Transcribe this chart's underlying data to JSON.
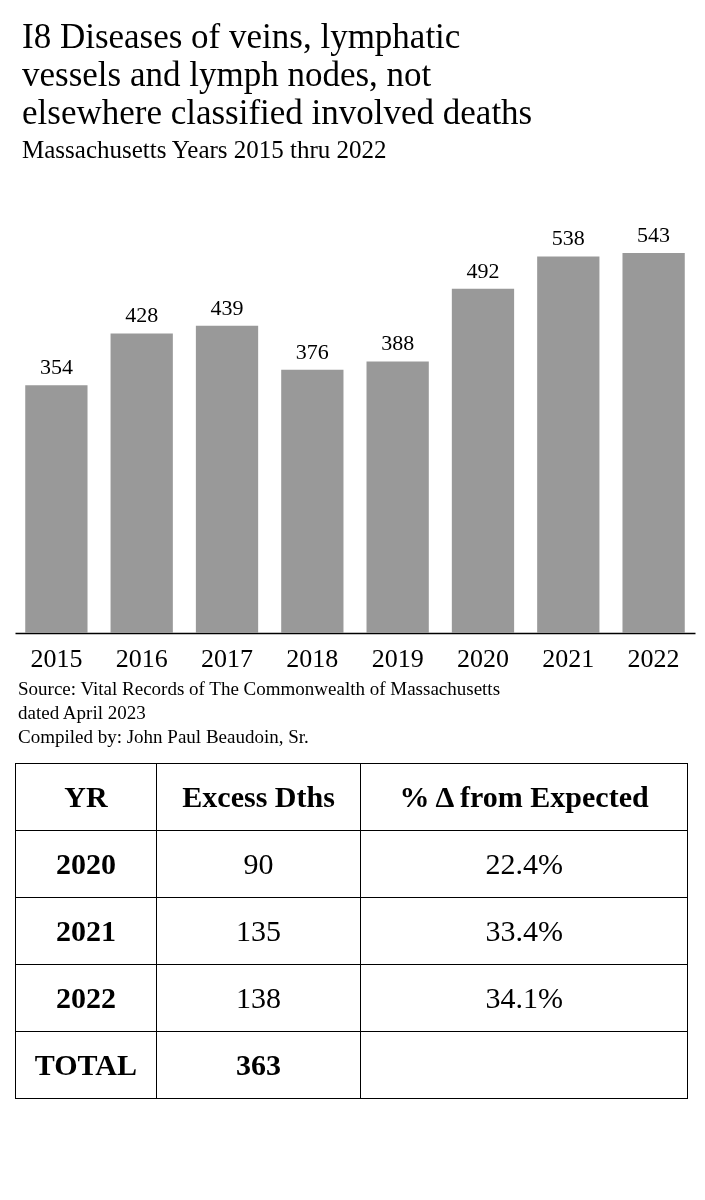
{
  "chart_data": [
    {
      "type": "bar",
      "title": "I8 Diseases of veins, lymphatic vessels and lymph nodes, not elsewhere classified involved deaths",
      "subtitle": "Massachusetts Years 2015 thru 2022",
      "categories": [
        "2015",
        "2016",
        "2017",
        "2018",
        "2019",
        "2020",
        "2021",
        "2022"
      ],
      "values": [
        354,
        428,
        439,
        376,
        388,
        492,
        538,
        543
      ],
      "color": "#999999",
      "data_labels": true,
      "grid": false,
      "annotations": [
        "Source:  Vital Records of The Commonwealth of Massachusetts dated April 2023",
        "Compiled by:  John Paul Beaudoin, Sr."
      ]
    },
    {
      "type": "other",
      "categories": [
        "YR",
        "Excess Dths",
        "% Δ from Expected"
      ],
      "y_categories": [
        "2020",
        "2021",
        "2022",
        "TOTAL"
      ],
      "cell_labels": [
        [
          "90",
          "22.4%"
        ],
        [
          "135",
          "33.4%"
        ],
        [
          "138",
          "34.1%"
        ],
        [
          "363",
          null
        ]
      ]
    }
  ]
}
